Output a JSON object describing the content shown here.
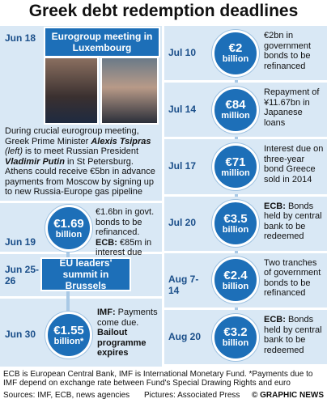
{
  "title": "Greek debt redemption deadlines",
  "left": {
    "jun18": {
      "date": "Jun 18",
      "event": "Eurogroup meeting in Luxembourg",
      "text": [
        "During crucial eurogroup meeting, Greek Prime Minister ",
        "Alexis Tsipras",
        " (left)",
        " is to meet Russian President ",
        "Vladimir Putin",
        " in St Petersburg. Athens could receive €5bn in advance payments from Moscow by signing up to new Russia-Europe gas pipeline"
      ]
    },
    "jun19": {
      "date": "Jun 19",
      "amount": "€1.69",
      "unit": "billion",
      "text": "€1.6bn in govt. bonds to be refinanced.",
      "lead": "ECB:",
      "rest": "€85m in interest due"
    },
    "jun25": {
      "date": "Jun 25-26",
      "event": "EU leaders' summit in Brussels"
    },
    "jun30": {
      "date": "Jun 30",
      "amount": "€1.55",
      "unit": "billion*",
      "lead": "IMF:",
      "text": "Payments come due.",
      "strong": "Bailout programme expires"
    }
  },
  "right": [
    {
      "date": "Jul 10",
      "amount": "€2",
      "unit": "billion",
      "text": "€2bn in government bonds to be refinanced"
    },
    {
      "date": "Jul 14",
      "amount": "€84",
      "unit": "million",
      "text": "Repayment of ¥11.67bn in Japanese loans"
    },
    {
      "date": "Jul 17",
      "amount": "€71",
      "unit": "million",
      "text": "Interest due on three-year bond Greece sold in 2014"
    },
    {
      "date": "Jul 20",
      "amount": "€3.5",
      "unit": "billion",
      "lead": "ECB:",
      "text": "Bonds held by central bank to be redeemed"
    },
    {
      "date": "Aug 7-14",
      "amount": "€2.4",
      "unit": "billion",
      "text": "Two tranches of government bonds to be refinanced"
    },
    {
      "date": "Aug 20",
      "amount": "€3.2",
      "unit": "billion",
      "lead": "ECB:",
      "text": "Bonds held by central bank to be redeemed"
    }
  ],
  "footer": {
    "note": "ECB is European Central Bank, IMF is International Monetary Fund. *Payments due to IMF depend on exchange rate between Fund's Special Drawing Rights and euro",
    "sources": "Sources: IMF, ECB, news agencies",
    "pictures": "Pictures: Associated Press",
    "credit": "© GRAPHIC NEWS"
  }
}
